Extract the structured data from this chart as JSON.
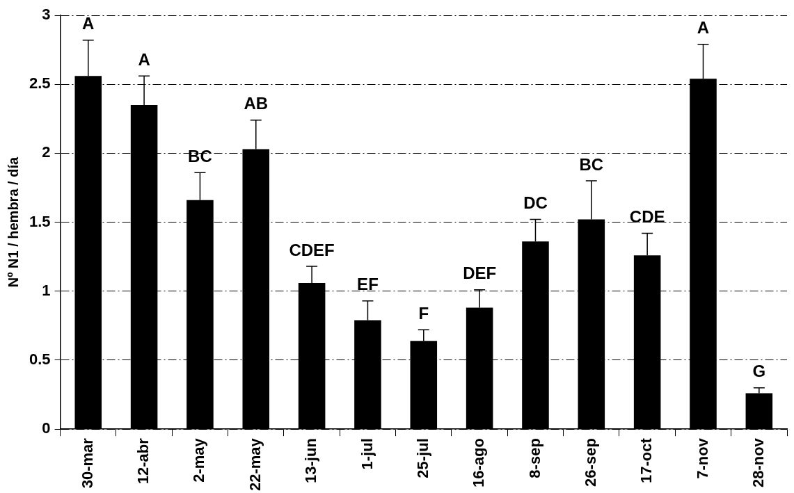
{
  "chart_data": {
    "type": "bar",
    "ylabel": "Nº N1 / hembra / día",
    "categories": [
      "30-mar",
      "12-abr",
      "2-may",
      "22-may",
      "13-jun",
      "1-jul",
      "25-jul",
      "16-ago",
      "8-sep",
      "26-sep",
      "17-oct",
      "7-nov",
      "28-nov"
    ],
    "values": [
      2.56,
      2.35,
      1.66,
      2.03,
      1.06,
      0.79,
      0.64,
      0.88,
      1.36,
      1.52,
      1.26,
      2.54,
      0.26
    ],
    "errors": [
      [
        2.56,
        2.82
      ],
      [
        2.35,
        2.56
      ],
      [
        1.66,
        1.86
      ],
      [
        2.03,
        2.24
      ],
      [
        1.06,
        1.18
      ],
      [
        0.79,
        0.93
      ],
      [
        0.64,
        0.72
      ],
      [
        0.88,
        1.01
      ],
      [
        1.36,
        1.52
      ],
      [
        1.52,
        1.8
      ],
      [
        1.26,
        1.42
      ],
      [
        2.54,
        2.79
      ],
      [
        0.26,
        0.3
      ]
    ],
    "color": "#000000",
    "ylim": [
      0,
      3
    ],
    "yticks": [
      0,
      0.5,
      1,
      1.5,
      2,
      2.5,
      3
    ],
    "grid": "y",
    "annotations": [
      "A",
      "A",
      "BC",
      "AB",
      "CDEF",
      "EF",
      "F",
      "DEF",
      "DC",
      "BC",
      "CDE",
      "A",
      "G"
    ]
  }
}
